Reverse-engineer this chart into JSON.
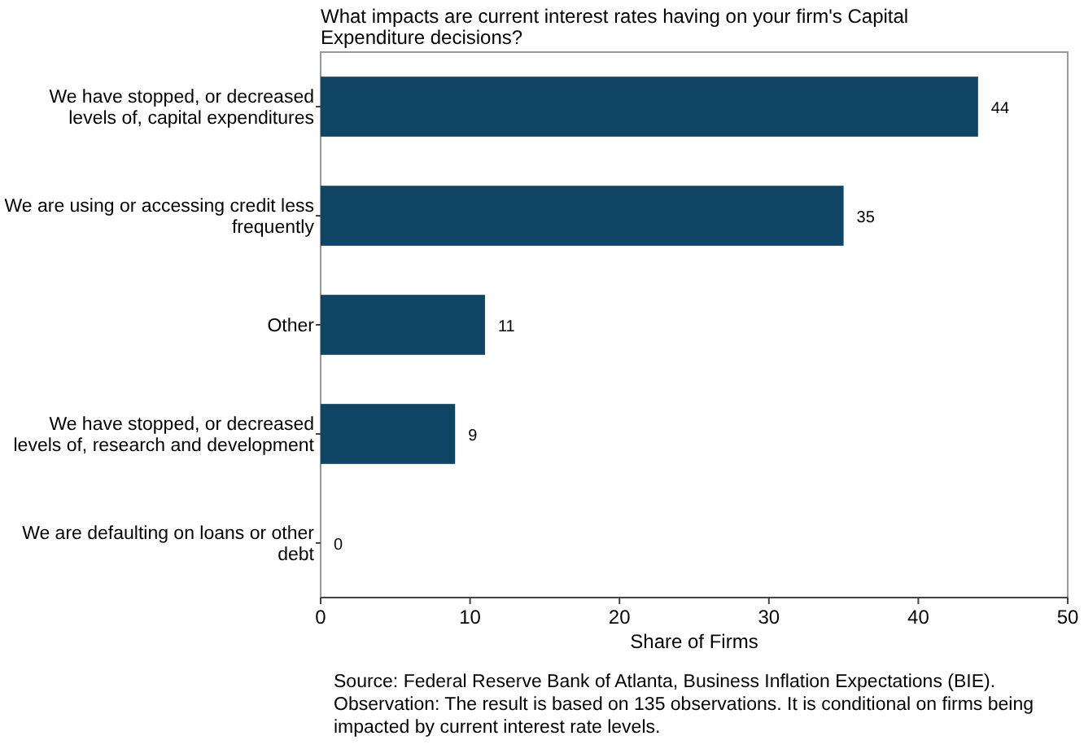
{
  "chart_data": {
    "type": "bar",
    "orientation": "horizontal",
    "title": "What impacts are current interest rates having on your firm's Capital Expenditure decisions?",
    "xlabel": "Share of Firms",
    "categories": [
      "We have stopped, or decreased levels of, capital expenditures",
      "We are using or accessing credit less frequently",
      "Other",
      "We have stopped, or decreased levels of, research and development",
      "We are defaulting on loans or other debt"
    ],
    "values": [
      44,
      35,
      11,
      9,
      0
    ],
    "color": "#114566",
    "data_labels": true,
    "xlim": [
      0,
      50
    ],
    "xticks": [
      0,
      10,
      20,
      30,
      40,
      50
    ],
    "grid": false,
    "annotations": [
      "Source: Federal Reserve Bank of Atlanta, Business Inflation Expectations (BIE).",
      "Observation: The result is based on 135 observations. It is conditional on firms being impacted by current interest rate levels."
    ]
  }
}
